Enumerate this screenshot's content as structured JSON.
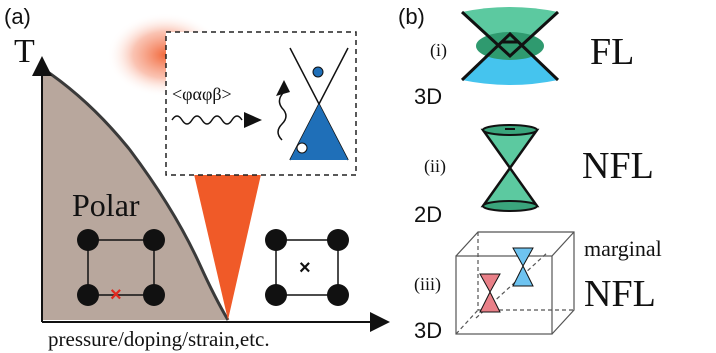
{
  "panel_a": {
    "label": "(a)",
    "y_axis_label": "T",
    "x_axis_label": "pressure/doping/strain,etc.",
    "phase_label": "Polar",
    "inset_correlator": "<φαφβ>",
    "polar_cell_marker": "×",
    "nonpolar_cell_marker": "×"
  },
  "panel_b": {
    "label": "(b)",
    "rows": [
      {
        "index": "(i)",
        "dimension": "3D",
        "phase": "FL",
        "qualifier": ""
      },
      {
        "index": "(ii)",
        "dimension": "2D",
        "phase": "NFL",
        "qualifier": ""
      },
      {
        "index": "(iii)",
        "dimension": "3D",
        "phase": "NFL",
        "qualifier": "marginal"
      }
    ]
  },
  "colors": {
    "polar_region": "#b8a79d",
    "orange_fan": "#f05a28",
    "blue_cone": "#1f6fb8",
    "green_cone": "#5cc9a0",
    "cyan_cone": "#45c4ee",
    "red_marker": "#e0281e",
    "pink_cone": "#e98088"
  }
}
